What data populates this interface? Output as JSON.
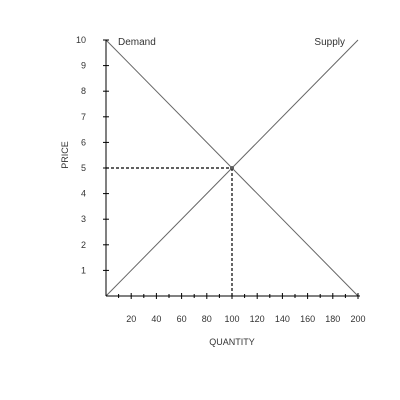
{
  "chart_data": {
    "type": "line",
    "title": "",
    "xlabel": "QUANTITY",
    "ylabel": "PRICE",
    "xlim": [
      0,
      200
    ],
    "ylim": [
      0,
      10
    ],
    "x_ticks": [
      20,
      40,
      60,
      80,
      100,
      120,
      140,
      160,
      180,
      200
    ],
    "x_ticks_minor": [
      10,
      30,
      50,
      70,
      90,
      110,
      130,
      150,
      170,
      190
    ],
    "y_ticks": [
      1,
      2,
      3,
      4,
      5,
      6,
      7,
      8,
      9,
      10
    ],
    "grid": false,
    "series": [
      {
        "name": "Demand",
        "x": [
          0,
          200
        ],
        "y": [
          10,
          0
        ]
      },
      {
        "name": "Supply",
        "x": [
          0,
          200
        ],
        "y": [
          0,
          10
        ]
      }
    ],
    "equilibrium": {
      "x": 100,
      "y": 5
    }
  }
}
